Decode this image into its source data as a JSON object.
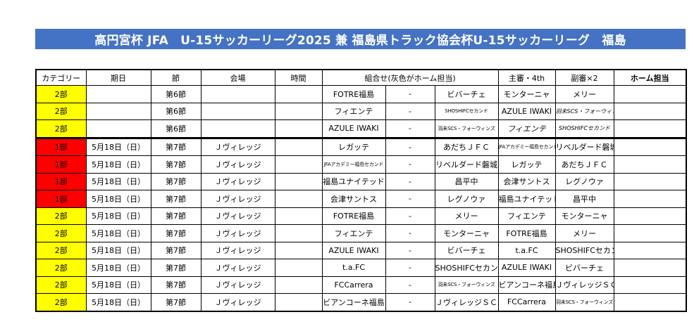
{
  "title": "高円宮杯 JFA　U-15サッカーリーグ2025 兼 福島県トラック協会杯U-15サッカーリーグ　福島",
  "headers": {
    "category": "カテゴリー",
    "date": "期日",
    "round": "節",
    "venue": "会場",
    "time": "時間",
    "match": "組合せ(灰色がホーム担当)",
    "referee": "主審・4th",
    "assistant": "副審×2",
    "home_duty": "ホーム担当"
  },
  "rows": [
    {
      "category": "2部",
      "date": "",
      "round": "第6節",
      "venue": "",
      "time": "",
      "home": "FOTRE福島",
      "vs": "-",
      "away": "ビバーチェ",
      "referee": "モンターニャ",
      "assistant": "メリー",
      "home_duty": ""
    },
    {
      "category": "2部",
      "date": "",
      "round": "第6節",
      "venue": "",
      "time": "",
      "home": "フィエンテ",
      "vs": "-",
      "away": "SHOSHIFCセカンド",
      "referee": "AZULE IWAKI",
      "assistant": "羽未SCS・フォーウィンズ",
      "home_duty": ""
    },
    {
      "category": "2部",
      "date": "",
      "round": "第6節",
      "venue": "",
      "time": "",
      "home": "AZULE IWAKI",
      "vs": "-",
      "away": "羽未SCS・フォーウィンズ",
      "referee": "フィエンテ",
      "assistant": "SHOSHIFCセカンド",
      "home_duty": ""
    },
    {
      "category": "1部",
      "date": "5月18日（日）",
      "round": "第7節",
      "venue": "Ｊヴィレッジ",
      "time": "",
      "home": "レガッテ",
      "vs": "-",
      "away": "あだちＪＦＣ",
      "referee": "JFAアカデミー福島セカンド",
      "assistant": "リベルダード磐城",
      "home_duty": ""
    },
    {
      "category": "1部",
      "date": "5月18日（日）",
      "round": "第7節",
      "venue": "Ｊヴィレッジ",
      "time": "",
      "home": "JFAアカデミー福島セカンド",
      "vs": "-",
      "away": "リベルダード磐城",
      "referee": "レガッテ",
      "assistant": "あだちＪＦＣ",
      "home_duty": ""
    },
    {
      "category": "1部",
      "date": "5月18日（日）",
      "round": "第7節",
      "venue": "Ｊヴィレッジ",
      "time": "",
      "home": "福島ユナイテッド",
      "vs": "-",
      "away": "昌平中",
      "referee": "会津サントス",
      "assistant": "レグノウァ",
      "home_duty": ""
    },
    {
      "category": "1部",
      "date": "5月18日（日）",
      "round": "第7節",
      "venue": "Ｊヴィレッジ",
      "time": "",
      "home": "会津サントス",
      "vs": "-",
      "away": "レグノウァ",
      "referee": "福島ユナイテッド",
      "assistant": "昌平中",
      "home_duty": ""
    },
    {
      "category": "2部",
      "date": "5月18日（日）",
      "round": "第7節",
      "venue": "Ｊヴィレッジ",
      "time": "",
      "home": "FOTRE福島",
      "vs": "-",
      "away": "メリー",
      "referee": "フィエンテ",
      "assistant": "モンターニャ",
      "home_duty": ""
    },
    {
      "category": "2部",
      "date": "5月18日（日）",
      "round": "第7節",
      "venue": "Ｊヴィレッジ",
      "time": "",
      "home": "フィエンテ",
      "vs": "-",
      "away": "モンターニャ",
      "referee": "FOTRE福島",
      "assistant": "メリー",
      "home_duty": ""
    },
    {
      "category": "2部",
      "date": "5月18日（日）",
      "round": "第7節",
      "venue": "Ｊヴィレッジ",
      "time": "",
      "home": "AZULE IWAKI",
      "vs": "-",
      "away": "ビバーチェ",
      "referee": "t.a.FC",
      "assistant": "SHOSHIFCセカンド",
      "home_duty": ""
    },
    {
      "category": "2部",
      "date": "5月18日（日）",
      "round": "第7節",
      "venue": "Ｊヴィレッジ",
      "time": "",
      "home": "t.a.FC",
      "vs": "-",
      "away": "SHOSHIFCセカンド",
      "referee": "AZULE IWAKI",
      "assistant": "ビバーチェ",
      "home_duty": ""
    },
    {
      "category": "2部",
      "date": "5月18日（日）",
      "round": "第7節",
      "venue": "Ｊヴィレッジ",
      "time": "",
      "home": "FCCarrera",
      "vs": "-",
      "away": "羽未SCS・フォーウィンズ",
      "referee": "ビアンコーネ福島",
      "assistant": "ＪヴィレッジＳＣ",
      "home_duty": ""
    },
    {
      "category": "2部",
      "date": "5月18日（日）",
      "round": "第7節",
      "venue": "Ｊヴィレッジ",
      "time": "",
      "home": "ビアンコーネ福島",
      "vs": "-",
      "away": "ＪヴィレッジＳＣ",
      "referee": "FCCarrera",
      "assistant": "羽未SCS・フォーウィンズ",
      "home_duty": ""
    }
  ],
  "colors": {
    "banner": "#4472c4",
    "division1": "#ff0000",
    "division2": "#ffff00"
  }
}
